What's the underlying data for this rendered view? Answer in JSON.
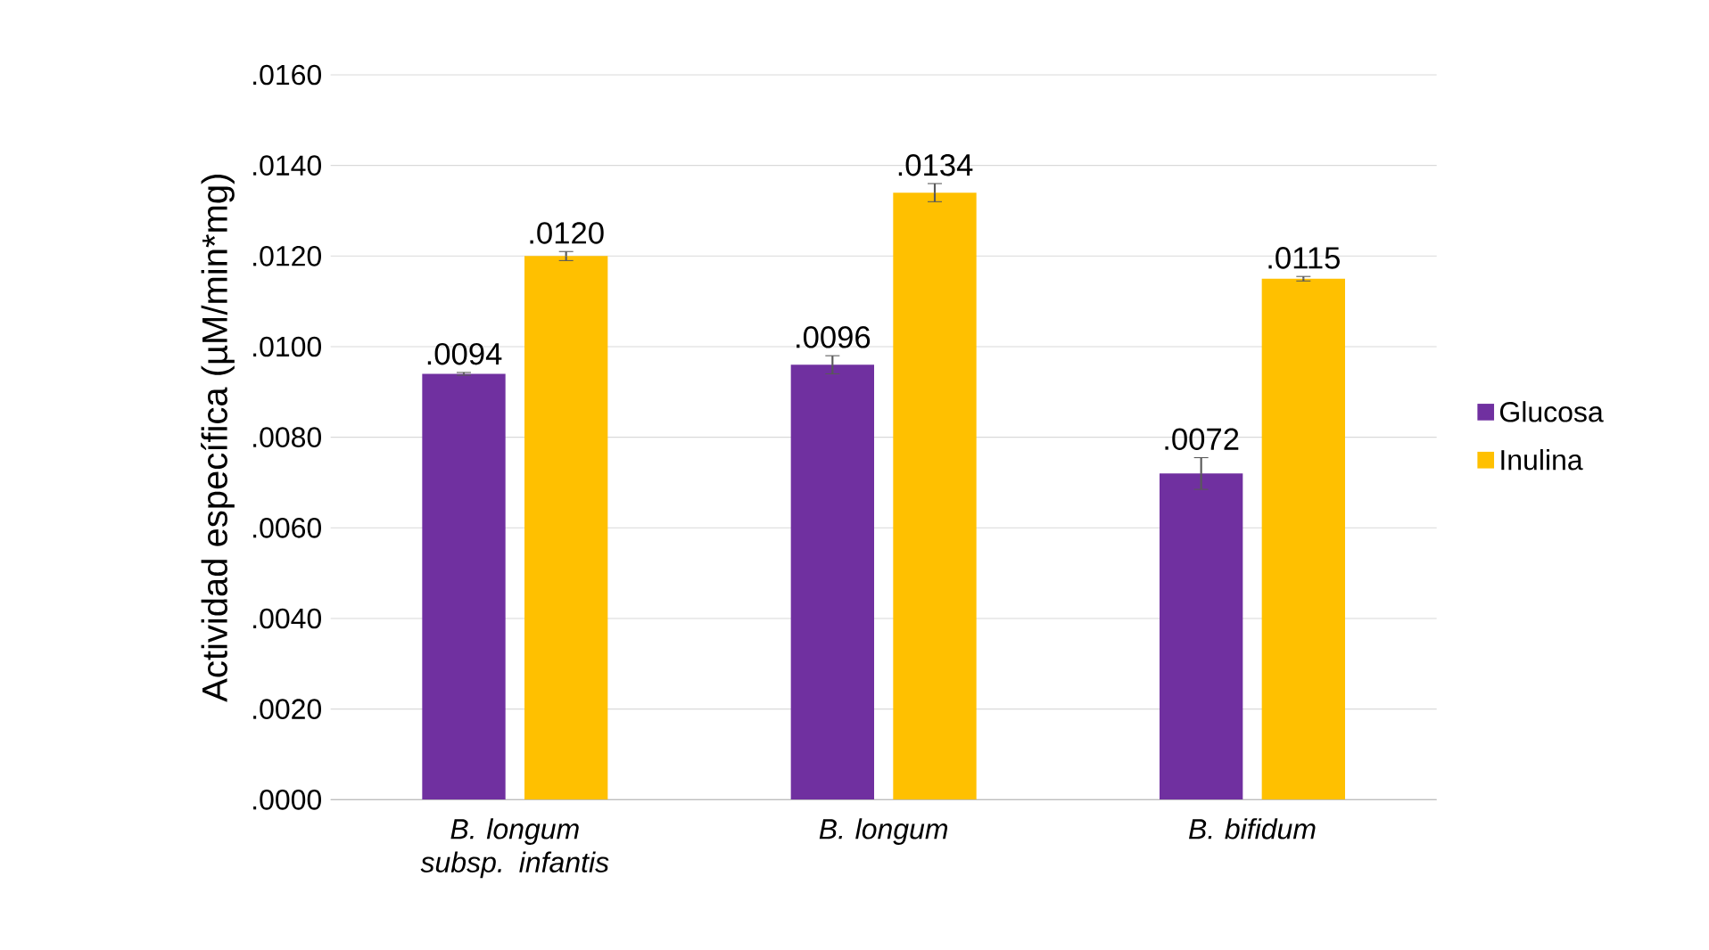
{
  "chart_data": {
    "type": "bar",
    "ylabel": "Actividad específica (µM/min*mg)",
    "categories": [
      "B. longum subsp. infantis",
      "B. longum",
      "B. bifidum"
    ],
    "series": [
      {
        "name": "Glucosa",
        "color": "#7030a0",
        "values": [
          0.0094,
          0.0096,
          0.0072
        ],
        "errors": [
          3e-05,
          0.0002,
          0.00035
        ],
        "value_labels": [
          ".0094",
          ".0096",
          ".0072"
        ]
      },
      {
        "name": "Inulina",
        "color": "#ffc000",
        "values": [
          0.012,
          0.0134,
          0.0115
        ],
        "errors": [
          0.0001,
          0.0002,
          5e-05
        ],
        "value_labels": [
          ".0120",
          ".0134",
          ".0115"
        ]
      }
    ],
    "ylim": [
      0,
      0.016
    ],
    "yticks": [
      {
        "value": 0,
        "label": ".0000"
      },
      {
        "value": 0.002,
        "label": ".0020"
      },
      {
        "value": 0.004,
        "label": ".0040"
      },
      {
        "value": 0.006,
        "label": ".0060"
      },
      {
        "value": 0.008,
        "label": ".0080"
      },
      {
        "value": 0.01,
        "label": ".0100"
      },
      {
        "value": 0.012,
        "label": ".0120"
      },
      {
        "value": 0.014,
        "label": ".0140"
      },
      {
        "value": 0.016,
        "label": ".0160"
      }
    ],
    "grid": "y",
    "legend": "right"
  }
}
